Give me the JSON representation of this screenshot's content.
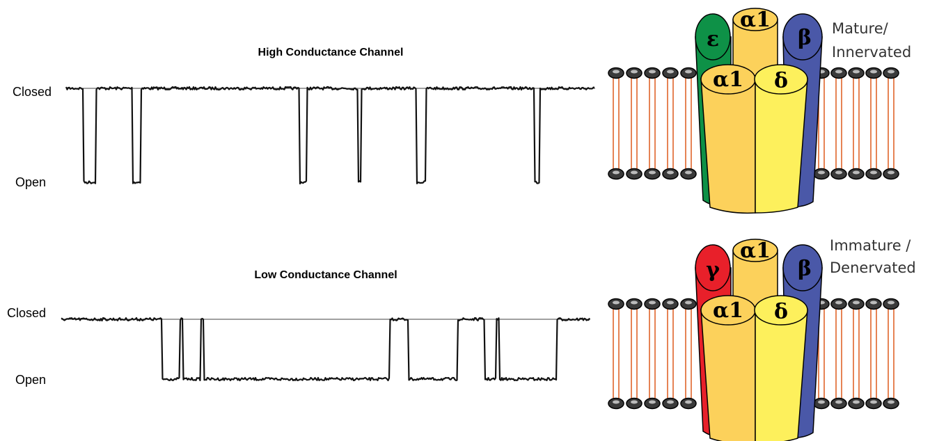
{
  "panels": [
    {
      "title": "High Conductance Channel",
      "closed_label": "Closed",
      "open_label": "Open",
      "receptor": {
        "subunits": [
          "ε",
          "α1",
          "β",
          "α1",
          "δ"
        ],
        "caption": [
          "Mature/",
          "Innervated"
        ]
      }
    },
    {
      "title": "Low Conductance Channel",
      "closed_label": "Closed",
      "open_label": "Open",
      "receptor": {
        "subunits": [
          "γ",
          "α1",
          "β",
          "α1",
          "δ"
        ],
        "caption": [
          "Immature /",
          "Denervated"
        ]
      }
    }
  ]
}
